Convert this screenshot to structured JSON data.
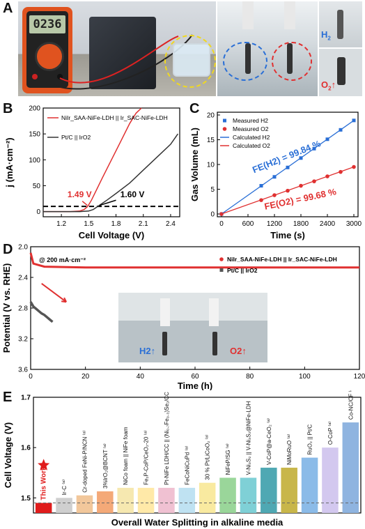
{
  "panels": {
    "A": "A",
    "B": "B",
    "C": "C",
    "D": "D",
    "E": "E"
  },
  "photo_A": {
    "meter_display": "0236",
    "labels": {
      "h2": "H",
      "h2_sub": "2",
      "o2": "O",
      "o2_sub": "2"
    }
  },
  "chart_data": [
    {
      "id": "B",
      "type": "line",
      "xlabel": "Cell Voltage (V)",
      "ylabel": "j (mA·cm⁻²)",
      "xlim": [
        1.0,
        2.5
      ],
      "ylim": [
        -10,
        200
      ],
      "xticks": [
        "1.2",
        "1.5",
        "1.8",
        "2.1",
        "2.4"
      ],
      "yticks": [
        "0",
        "50",
        "100",
        "150",
        "200"
      ],
      "series": [
        {
          "name": "NiIr_SAA-NiFe-LDH || Ir_SAC-NiFe-LDH",
          "color": "#e03030",
          "x": [
            1.0,
            1.3,
            1.4,
            1.45,
            1.49,
            1.53,
            1.58,
            1.65,
            1.75,
            1.85,
            1.95,
            2.02,
            2.08
          ],
          "y": [
            0,
            0,
            1,
            4,
            10,
            22,
            40,
            65,
            100,
            135,
            170,
            190,
            200
          ]
        },
        {
          "name": "Pt/C || IrO2",
          "color": "#333333",
          "x": [
            1.0,
            1.4,
            1.5,
            1.55,
            1.6,
            1.7,
            1.8,
            1.95,
            2.1,
            2.25,
            2.4,
            2.48
          ],
          "y": [
            0,
            0,
            1,
            4,
            10,
            22,
            35,
            55,
            80,
            105,
            130,
            150
          ]
        }
      ],
      "reference_line": {
        "y": 10,
        "style": "dashed"
      },
      "annotations": [
        "1.49 V",
        "1.60 V"
      ]
    },
    {
      "id": "C",
      "type": "scatter",
      "xlabel": "Time (s)",
      "ylabel": "Gas Volume (mL)",
      "xlim": [
        0,
        3000
      ],
      "ylim": [
        0,
        20
      ],
      "xticks": [
        "0",
        "600",
        "1200",
        "1800",
        "2400",
        "3000"
      ],
      "yticks": [
        "0",
        "5",
        "10",
        "15",
        "20"
      ],
      "series": [
        {
          "name": "Measured H2",
          "color": "#2a6fd6",
          "marker": "square",
          "x": [
            0,
            900,
            1200,
            1500,
            1800,
            2100,
            2400,
            2700,
            3000
          ],
          "y": [
            0,
            5.7,
            7.5,
            9.4,
            11.3,
            13.2,
            15.1,
            17.0,
            18.9
          ]
        },
        {
          "name": "Measured O2",
          "color": "#e03030",
          "marker": "circle",
          "x": [
            0,
            900,
            1200,
            1500,
            1800,
            2100,
            2400,
            2700,
            3000
          ],
          "y": [
            0,
            2.8,
            3.8,
            4.7,
            5.7,
            6.6,
            7.6,
            8.5,
            9.5
          ]
        },
        {
          "name": "Calculated H2",
          "color": "#2a6fd6",
          "line": true,
          "x": [
            0,
            3000
          ],
          "y": [
            0,
            18.9
          ]
        },
        {
          "name": "Calculated O2",
          "color": "#e03030",
          "line": true,
          "x": [
            0,
            3000
          ],
          "y": [
            0,
            9.5
          ]
        }
      ],
      "annotations": [
        "FE(H2) = 99.84 %",
        "FE(O2) = 99.68 %"
      ]
    },
    {
      "id": "D",
      "type": "line",
      "xlabel": "Time (h)",
      "ylabel": "Potential (V vs. RHE)",
      "xlim": [
        0,
        120
      ],
      "ylim": [
        2.0,
        3.6
      ],
      "y_inverted": true,
      "xticks": [
        "0",
        "20",
        "40",
        "60",
        "80",
        "100",
        "120"
      ],
      "yticks": [
        "2.0",
        "2.4",
        "2.8",
        "3.2",
        "3.6"
      ],
      "condition": "@ 200 mA·cm⁻²",
      "series": [
        {
          "name": "NiIr_SAA-NiFe-LDH || Ir_SAC-NiFe-LDH",
          "color": "#e03030",
          "x": [
            0,
            1,
            5,
            20,
            40,
            60,
            80,
            100,
            120
          ],
          "y": [
            2.08,
            2.22,
            2.26,
            2.27,
            2.27,
            2.27,
            2.27,
            2.27,
            2.27
          ]
        },
        {
          "name": "Pt/C || IrO2",
          "color": "#555555",
          "x": [
            0,
            1,
            2,
            3,
            4,
            5,
            6,
            7,
            8
          ],
          "y": [
            2.72,
            2.78,
            2.81,
            2.84,
            2.87,
            2.89,
            2.92,
            2.95,
            2.98
          ]
        }
      ],
      "inset_labels": {
        "h2": "H2↑",
        "o2": "O2↑"
      }
    },
    {
      "id": "E",
      "type": "bar",
      "xlabel": "Overall Water Splitting in alkaline media",
      "ylabel": "Cell Voltage (V)",
      "ylim": [
        1.47,
        1.7
      ],
      "yticks": [
        "1.5",
        "1.6",
        "1.7"
      ],
      "reference_line": {
        "y": 1.49,
        "style": "dashed"
      },
      "categories": [
        "This Work",
        "Ir-C ⁽ᵃ⁾",
        "Cr-doped FeNi-P/NCN ⁽ᵃ⁾",
        "3%IrO₂@BCNT ⁽ᵃ⁾",
        "NiCo foam || NiFe foam",
        "Fe₂P-CoP/CeO₂-20 ⁽ᵃ⁾",
        "Pt-NiFe LDH/CC || (Ni₀.₇Fe₀.₃)Se₂/CC",
        "FeCoNiCuPd ⁽ᵃ⁾",
        "30 % Pt/LiCoO₂ ⁽ᵃ⁾",
        "NiFeP/SG ⁽ᵃ⁾",
        "V-Ni₃S₂ || V-Ni₃S₂@NiFe-LDH",
        "V-CoP@a-CeO₂ ⁽ᵃ⁾",
        "NiMoRuO ⁽ᵃ⁾",
        "RuO₂ || Pt/C",
        "O-CoP ⁽ᵃ⁾",
        "Co-NC/CF ⁽ᵃ⁾"
      ],
      "values": [
        1.49,
        1.5,
        1.505,
        1.513,
        1.52,
        1.52,
        1.52,
        1.52,
        1.53,
        1.54,
        1.54,
        1.56,
        1.56,
        1.58,
        1.6,
        1.65
      ],
      "colors": [
        "#e01c1c",
        "#cfcfcf",
        "#f2c79b",
        "#f4a978",
        "#f6e8b0",
        "#ffe9a8",
        "#f0c1d2",
        "#bfe2f2",
        "#f9eaa0",
        "#9ad69a",
        "#7fd0d6",
        "#4fa8b3",
        "#c8b64a",
        "#8bbbe8",
        "#d3c8ef",
        "#8fb4e0"
      ]
    }
  ]
}
